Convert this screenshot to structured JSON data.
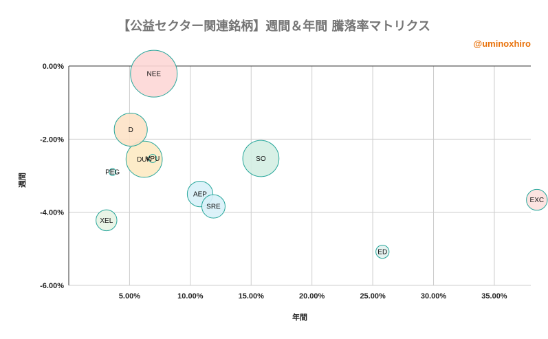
{
  "header": {
    "title": "【公益セクター関連銘柄】週間＆年間 騰落率マトリクス",
    "credit": "@uminoxhiro"
  },
  "colors": {
    "stroke": "#26a69a",
    "grid": "#cccccc",
    "axis": "#333333"
  },
  "chart_data": {
    "type": "scatter",
    "xlabel": "年間",
    "ylabel": "週間",
    "xlim": [
      0.0,
      0.38
    ],
    "ylim": [
      -0.06,
      0.0
    ],
    "x_ticks": [
      0.05,
      0.1,
      0.15,
      0.2,
      0.25,
      0.3,
      0.35
    ],
    "x_tick_labels": [
      "5.00%",
      "10.00%",
      "15.00%",
      "20.00%",
      "25.00%",
      "30.00%",
      "35.00%"
    ],
    "y_ticks": [
      0.0,
      -0.02,
      -0.04,
      -0.06
    ],
    "y_tick_labels": [
      "0.00%",
      "-2.00%",
      "-4.00%",
      "-6.00%"
    ],
    "grid": true,
    "legend": "none",
    "points": [
      {
        "label": "NEE",
        "x": 0.07,
        "y": -0.0021,
        "size": 10,
        "color": "#fdd7d6"
      },
      {
        "label": "D",
        "x": 0.051,
        "y": -0.0174,
        "size": 5,
        "color": "#fde2c7"
      },
      {
        "label": "DUK",
        "x": 0.062,
        "y": -0.0255,
        "size": 6,
        "color": "#fdeac3"
      },
      {
        "label": "VPU",
        "x": 0.069,
        "y": -0.0253,
        "size": 0.3,
        "color": "#fdeac3"
      },
      {
        "label": "PEG",
        "x": 0.036,
        "y": -0.029,
        "size": 0.2,
        "color": "#e3f2f0"
      },
      {
        "label": "SO",
        "x": 0.158,
        "y": -0.0253,
        "size": 6,
        "color": "#d4eee3"
      },
      {
        "label": "AEP",
        "x": 0.108,
        "y": -0.035,
        "size": 3,
        "color": "#d8f1f8"
      },
      {
        "label": "SRE",
        "x": 0.119,
        "y": -0.0384,
        "size": 2.5,
        "color": "#d8f1f8"
      },
      {
        "label": "XEL",
        "x": 0.031,
        "y": -0.0422,
        "size": 2,
        "color": "#e7f3e3"
      },
      {
        "label": "ED",
        "x": 0.258,
        "y": -0.0508,
        "size": 0.8,
        "color": "#e3f2f0"
      },
      {
        "label": "EXC",
        "x": 0.385,
        "y": -0.0366,
        "size": 2,
        "color": "#fde0de"
      }
    ]
  }
}
